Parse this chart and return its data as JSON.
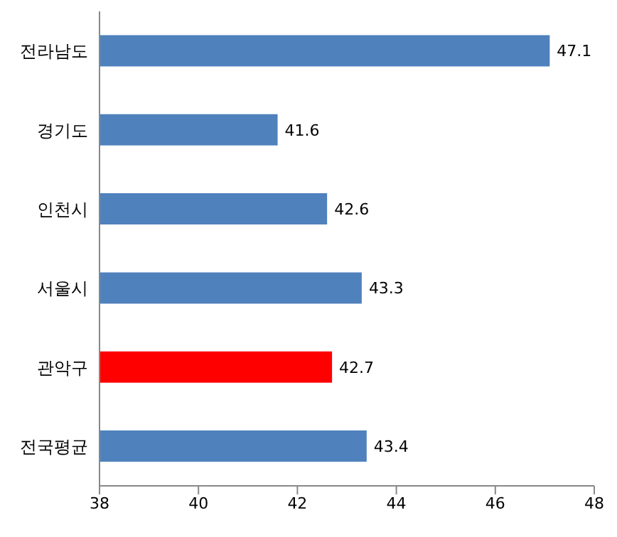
{
  "chart_data": {
    "type": "bar",
    "orientation": "horizontal",
    "categories": [
      "전라남도",
      "경기도",
      "인천시",
      "서울시",
      "관악구",
      "전국평균"
    ],
    "values": [
      47.1,
      41.6,
      42.6,
      43.3,
      42.7,
      43.4
    ],
    "colors": [
      "#4f81bd",
      "#4f81bd",
      "#4f81bd",
      "#4f81bd",
      "#ff0000",
      "#4f81bd"
    ],
    "xlim": [
      38,
      48
    ],
    "xticks": [
      38,
      40,
      42,
      44,
      46,
      48
    ],
    "data_labels": true
  }
}
